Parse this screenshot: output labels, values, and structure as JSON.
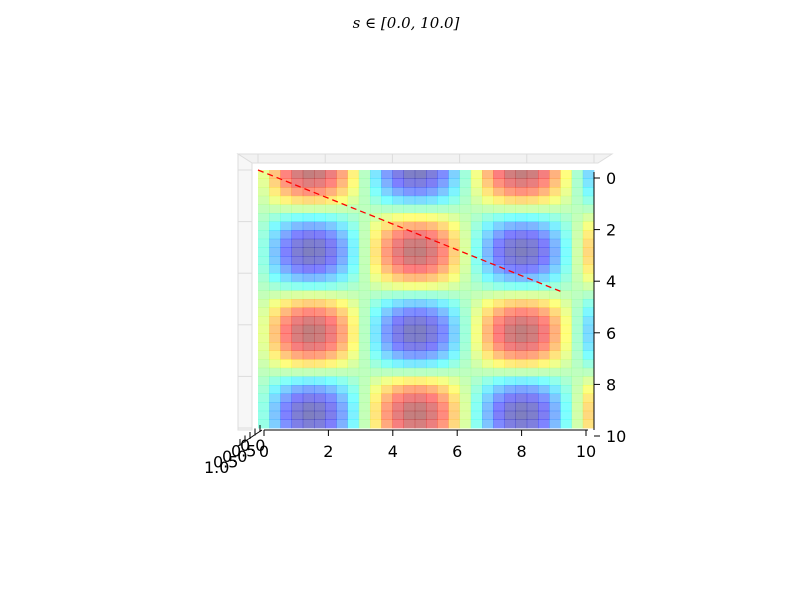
{
  "chart_data": {
    "type": "surface",
    "title": "s ∈ [0.0, 10.0]",
    "x": {
      "label": "",
      "range": [
        0,
        10
      ],
      "ticks": [
        "0",
        "2",
        "4",
        "6",
        "8",
        "10"
      ]
    },
    "y": {
      "label": "",
      "range": [
        0,
        10
      ],
      "ticks": [
        "0",
        "2",
        "4",
        "6",
        "8",
        "10"
      ]
    },
    "z": {
      "label": "",
      "ticks": [
        "1.0",
        "0.5",
        "0.0",
        "0.5",
        "0.0"
      ]
    },
    "surface": {
      "function": "sin(x) * cos(y)",
      "grid_resolution": 30,
      "colormap": "jet",
      "alpha": 0.5
    },
    "line": {
      "color": "#ff0000",
      "style": "dashed",
      "points": [
        [
          0,
          0
        ],
        [
          9,
          4.7
        ]
      ]
    },
    "grid": true,
    "view": "top"
  }
}
